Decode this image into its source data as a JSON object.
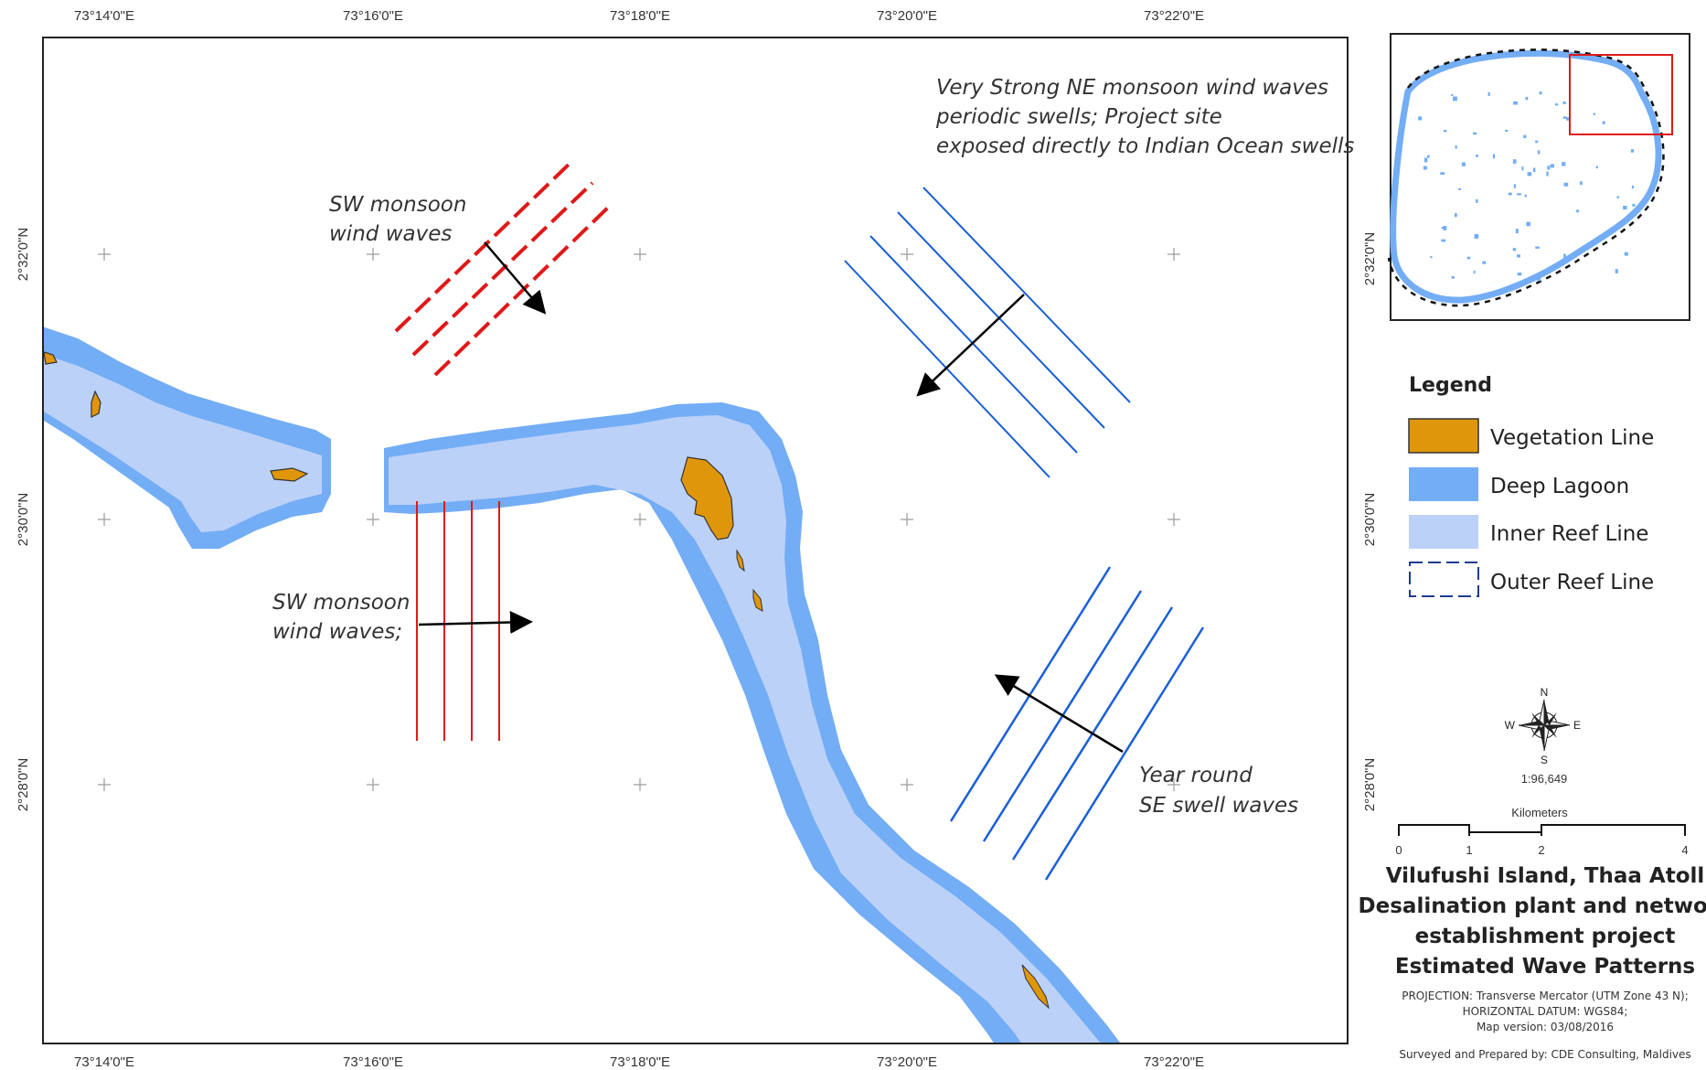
{
  "colors": {
    "vegetation": "#e0960a",
    "deep_lagoon": "#73adf5",
    "inner_reef": "#bcd1f7",
    "outer_reef": "#1f3d8f",
    "sw_waves": "#e01818",
    "ne_waves": "#1a5fd6",
    "inset_box": "#e01818"
  },
  "grid": {
    "lon_labels": [
      "73°14'0\"E",
      "73°16'0\"E",
      "73°18'0\"E",
      "73°20'0\"E",
      "73°22'0\"E"
    ],
    "lat_labels": [
      "2°32'0\"N",
      "2°30'0\"N",
      "2°28'0\"N"
    ]
  },
  "annotations": {
    "ne_monsoon": [
      "Very Strong NE monsoon wind waves",
      "periodic swells; Project site",
      "exposed directly to Indian Ocean swells"
    ],
    "sw_top": [
      "SW monsoon",
      "wind waves"
    ],
    "sw_mid": [
      "SW monsoon",
      "wind waves;"
    ],
    "se_swell": [
      "Year round",
      "SE swell waves"
    ]
  },
  "inset": {
    "lat_label": "2°32'0\"N"
  },
  "legend": {
    "title": "Legend",
    "items": [
      {
        "label": "Vegetation Line",
        "icon": "vegetation-swatch"
      },
      {
        "label": "Deep Lagoon",
        "icon": "deep-lagoon-swatch"
      },
      {
        "label": "Inner Reef Line",
        "icon": "inner-reef-swatch"
      },
      {
        "label": "Outer Reef Line",
        "icon": "outer-reef-dashed-swatch"
      }
    ],
    "side_lat_labels": [
      "2°30'0\"N",
      "2°28'0\"N"
    ]
  },
  "compass": {
    "n": "N",
    "s": "S",
    "e": "E",
    "w": "W",
    "icon": "compass-rose-icon"
  },
  "scale": {
    "ratio": "1:96,649",
    "unit": "Kilometers",
    "ticks": [
      "0",
      "1",
      "2",
      "4"
    ]
  },
  "title_block": {
    "lines": [
      "Vilufushi Island, Thaa Atoll",
      "Desalination plant and network",
      "establishment project",
      "Estimated Wave Patterns"
    ],
    "meta": [
      "PROJECTION: Transverse Mercator (UTM Zone 43 N);",
      "HORIZONTAL DATUM: WGS84;",
      "Map version: 03/08/2016"
    ],
    "credit": "Surveyed and Prepared by: CDE Consulting, Maldives"
  }
}
